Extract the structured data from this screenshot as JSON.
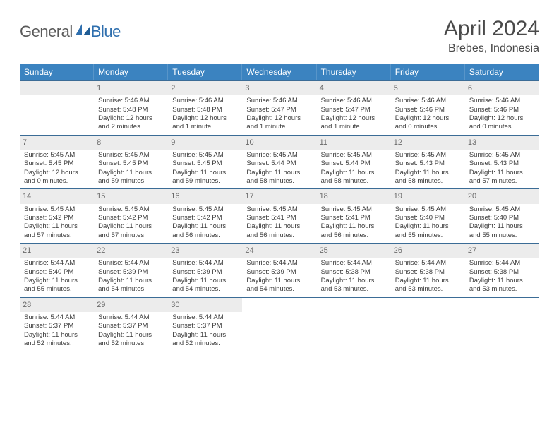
{
  "logo": {
    "general": "General",
    "blue": "Blue"
  },
  "title": "April 2024",
  "location": "Brebes, Indonesia",
  "colors": {
    "header_bg": "#3b83c0",
    "header_text": "#ffffff",
    "week_border": "#3b6c96",
    "daynum_bg": "#ececec",
    "daynum_text": "#6a6a6a",
    "body_text": "#3a3a3a",
    "title_text": "#4a4a4a",
    "logo_gray": "#5a5a5a",
    "logo_blue": "#2f6fae"
  },
  "daysOfWeek": [
    "Sunday",
    "Monday",
    "Tuesday",
    "Wednesday",
    "Thursday",
    "Friday",
    "Saturday"
  ],
  "weeks": [
    [
      {
        "n": "",
        "sunrise": "",
        "sunset": "",
        "daylight": ""
      },
      {
        "n": "1",
        "sunrise": "Sunrise: 5:46 AM",
        "sunset": "Sunset: 5:48 PM",
        "daylight": "Daylight: 12 hours and 2 minutes."
      },
      {
        "n": "2",
        "sunrise": "Sunrise: 5:46 AM",
        "sunset": "Sunset: 5:48 PM",
        "daylight": "Daylight: 12 hours and 1 minute."
      },
      {
        "n": "3",
        "sunrise": "Sunrise: 5:46 AM",
        "sunset": "Sunset: 5:47 PM",
        "daylight": "Daylight: 12 hours and 1 minute."
      },
      {
        "n": "4",
        "sunrise": "Sunrise: 5:46 AM",
        "sunset": "Sunset: 5:47 PM",
        "daylight": "Daylight: 12 hours and 1 minute."
      },
      {
        "n": "5",
        "sunrise": "Sunrise: 5:46 AM",
        "sunset": "Sunset: 5:46 PM",
        "daylight": "Daylight: 12 hours and 0 minutes."
      },
      {
        "n": "6",
        "sunrise": "Sunrise: 5:46 AM",
        "sunset": "Sunset: 5:46 PM",
        "daylight": "Daylight: 12 hours and 0 minutes."
      }
    ],
    [
      {
        "n": "7",
        "sunrise": "Sunrise: 5:45 AM",
        "sunset": "Sunset: 5:45 PM",
        "daylight": "Daylight: 12 hours and 0 minutes."
      },
      {
        "n": "8",
        "sunrise": "Sunrise: 5:45 AM",
        "sunset": "Sunset: 5:45 PM",
        "daylight": "Daylight: 11 hours and 59 minutes."
      },
      {
        "n": "9",
        "sunrise": "Sunrise: 5:45 AM",
        "sunset": "Sunset: 5:45 PM",
        "daylight": "Daylight: 11 hours and 59 minutes."
      },
      {
        "n": "10",
        "sunrise": "Sunrise: 5:45 AM",
        "sunset": "Sunset: 5:44 PM",
        "daylight": "Daylight: 11 hours and 58 minutes."
      },
      {
        "n": "11",
        "sunrise": "Sunrise: 5:45 AM",
        "sunset": "Sunset: 5:44 PM",
        "daylight": "Daylight: 11 hours and 58 minutes."
      },
      {
        "n": "12",
        "sunrise": "Sunrise: 5:45 AM",
        "sunset": "Sunset: 5:43 PM",
        "daylight": "Daylight: 11 hours and 58 minutes."
      },
      {
        "n": "13",
        "sunrise": "Sunrise: 5:45 AM",
        "sunset": "Sunset: 5:43 PM",
        "daylight": "Daylight: 11 hours and 57 minutes."
      }
    ],
    [
      {
        "n": "14",
        "sunrise": "Sunrise: 5:45 AM",
        "sunset": "Sunset: 5:42 PM",
        "daylight": "Daylight: 11 hours and 57 minutes."
      },
      {
        "n": "15",
        "sunrise": "Sunrise: 5:45 AM",
        "sunset": "Sunset: 5:42 PM",
        "daylight": "Daylight: 11 hours and 57 minutes."
      },
      {
        "n": "16",
        "sunrise": "Sunrise: 5:45 AM",
        "sunset": "Sunset: 5:42 PM",
        "daylight": "Daylight: 11 hours and 56 minutes."
      },
      {
        "n": "17",
        "sunrise": "Sunrise: 5:45 AM",
        "sunset": "Sunset: 5:41 PM",
        "daylight": "Daylight: 11 hours and 56 minutes."
      },
      {
        "n": "18",
        "sunrise": "Sunrise: 5:45 AM",
        "sunset": "Sunset: 5:41 PM",
        "daylight": "Daylight: 11 hours and 56 minutes."
      },
      {
        "n": "19",
        "sunrise": "Sunrise: 5:45 AM",
        "sunset": "Sunset: 5:40 PM",
        "daylight": "Daylight: 11 hours and 55 minutes."
      },
      {
        "n": "20",
        "sunrise": "Sunrise: 5:45 AM",
        "sunset": "Sunset: 5:40 PM",
        "daylight": "Daylight: 11 hours and 55 minutes."
      }
    ],
    [
      {
        "n": "21",
        "sunrise": "Sunrise: 5:44 AM",
        "sunset": "Sunset: 5:40 PM",
        "daylight": "Daylight: 11 hours and 55 minutes."
      },
      {
        "n": "22",
        "sunrise": "Sunrise: 5:44 AM",
        "sunset": "Sunset: 5:39 PM",
        "daylight": "Daylight: 11 hours and 54 minutes."
      },
      {
        "n": "23",
        "sunrise": "Sunrise: 5:44 AM",
        "sunset": "Sunset: 5:39 PM",
        "daylight": "Daylight: 11 hours and 54 minutes."
      },
      {
        "n": "24",
        "sunrise": "Sunrise: 5:44 AM",
        "sunset": "Sunset: 5:39 PM",
        "daylight": "Daylight: 11 hours and 54 minutes."
      },
      {
        "n": "25",
        "sunrise": "Sunrise: 5:44 AM",
        "sunset": "Sunset: 5:38 PM",
        "daylight": "Daylight: 11 hours and 53 minutes."
      },
      {
        "n": "26",
        "sunrise": "Sunrise: 5:44 AM",
        "sunset": "Sunset: 5:38 PM",
        "daylight": "Daylight: 11 hours and 53 minutes."
      },
      {
        "n": "27",
        "sunrise": "Sunrise: 5:44 AM",
        "sunset": "Sunset: 5:38 PM",
        "daylight": "Daylight: 11 hours and 53 minutes."
      }
    ],
    [
      {
        "n": "28",
        "sunrise": "Sunrise: 5:44 AM",
        "sunset": "Sunset: 5:37 PM",
        "daylight": "Daylight: 11 hours and 52 minutes."
      },
      {
        "n": "29",
        "sunrise": "Sunrise: 5:44 AM",
        "sunset": "Sunset: 5:37 PM",
        "daylight": "Daylight: 11 hours and 52 minutes."
      },
      {
        "n": "30",
        "sunrise": "Sunrise: 5:44 AM",
        "sunset": "Sunset: 5:37 PM",
        "daylight": "Daylight: 11 hours and 52 minutes."
      },
      {
        "n": "",
        "sunrise": "",
        "sunset": "",
        "daylight": "",
        "trailing": true
      },
      {
        "n": "",
        "sunrise": "",
        "sunset": "",
        "daylight": "",
        "trailing": true
      },
      {
        "n": "",
        "sunrise": "",
        "sunset": "",
        "daylight": "",
        "trailing": true
      },
      {
        "n": "",
        "sunrise": "",
        "sunset": "",
        "daylight": "",
        "trailing": true
      }
    ]
  ]
}
